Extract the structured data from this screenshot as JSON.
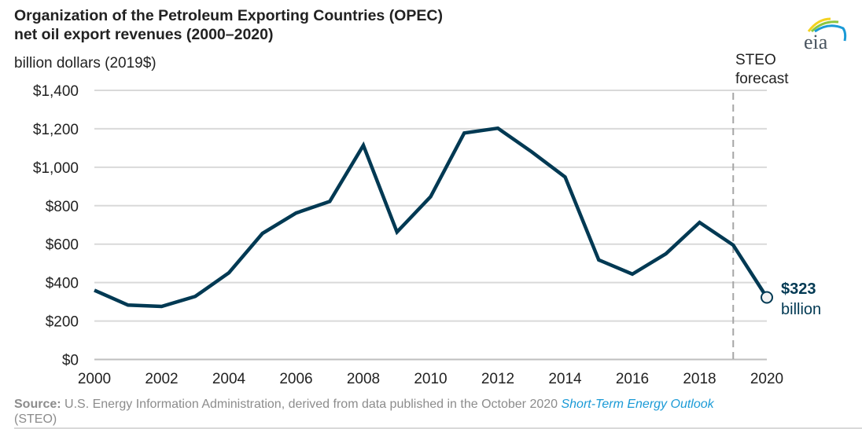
{
  "header": {
    "title_line1": "Organization of the Petroleum Exporting Countries (OPEC)",
    "title_line2": "net oil export revenues (2000–2020)",
    "units": "billion dollars (2019$)",
    "logo_text": "eia"
  },
  "colors": {
    "line": "#003953",
    "grid": "#d9d9d9",
    "forecast_line": "#a6a6a6",
    "link": "#1a9ad6"
  },
  "chart_data": {
    "type": "line",
    "title": "Organization of the Petroleum Exporting Countries (OPEC) net oil export revenues (2000–2020)",
    "ylabel": "billion dollars (2019$)",
    "xlabel": "",
    "ylim": [
      0,
      1400
    ],
    "xlim": [
      2000,
      2020
    ],
    "grid": true,
    "y_ticks": [
      0,
      200,
      400,
      600,
      800,
      1000,
      1200,
      1400
    ],
    "y_tick_labels": [
      "$0",
      "$200",
      "$400",
      "$600",
      "$800",
      "$1,000",
      "$1,200",
      "$1,400"
    ],
    "x_ticks": [
      2000,
      2002,
      2004,
      2006,
      2008,
      2010,
      2012,
      2014,
      2016,
      2018,
      2020
    ],
    "x_tick_labels": [
      "2000",
      "2002",
      "2004",
      "2006",
      "2008",
      "2010",
      "2012",
      "2014",
      "2016",
      "2018",
      "2020"
    ],
    "series": [
      {
        "name": "OPEC net oil export revenues",
        "x": [
          2000,
          2001,
          2002,
          2003,
          2004,
          2005,
          2006,
          2007,
          2008,
          2009,
          2010,
          2011,
          2012,
          2013,
          2014,
          2015,
          2016,
          2017,
          2018,
          2019,
          2020
        ],
        "values": [
          360,
          283,
          276,
          328,
          451,
          656,
          762,
          822,
          1114,
          663,
          847,
          1178,
          1203,
          1081,
          949,
          518,
          444,
          550,
          713,
          595,
          323
        ]
      }
    ],
    "forecast_start": 2019,
    "annotations": {
      "forecast_label_line1": "STEO",
      "forecast_label_line2": "forecast",
      "endpoint_value": "$323",
      "endpoint_unit": "billion"
    }
  },
  "footer": {
    "source_label": "Source:",
    "source_text": " U.S. Energy Information Administration, derived from data published in the October 2020 ",
    "source_link": "Short-Term Energy Outlook",
    "source_tail": "(STEO)"
  }
}
